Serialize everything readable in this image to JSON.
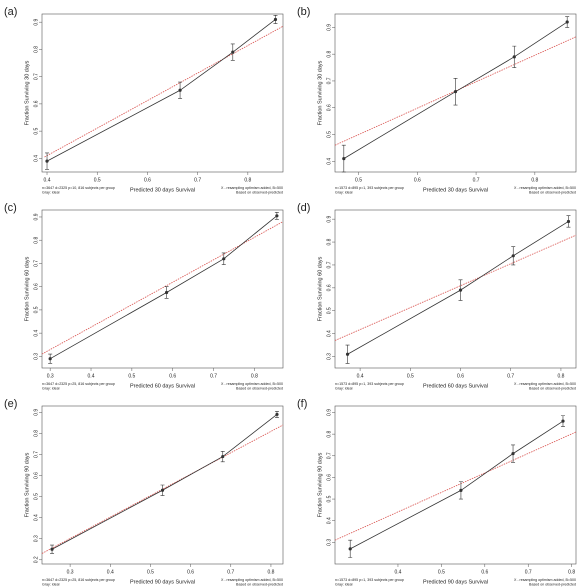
{
  "chart_data": [
    {
      "type": "line",
      "label": "(a)",
      "xlabel": "Predicted  30 days Survival",
      "ylabel": "Fraction Surviving 30 days",
      "note_left": [
        "n=3647 d=2325 p=10, 816 subjects per group",
        "Gray: ideal"
      ],
      "note_right": [
        "X - resampling optimism added, B=500",
        "Based on observed-predicted"
      ],
      "x": [
        0.4,
        0.665,
        0.77,
        0.855
      ],
      "values": [
        0.39,
        0.65,
        0.79,
        0.91
      ],
      "errors": [
        0.03,
        0.03,
        0.03,
        0.015
      ],
      "color": "#333333",
      "fit_x": [
        0.395,
        0.87
      ],
      "fit_values": [
        0.405,
        0.885
      ],
      "fit_color": "#d9534f",
      "xlim": [
        0.39,
        0.87
      ],
      "xticks": [
        0.4,
        0.5,
        0.6,
        0.7,
        0.8
      ],
      "ylim": [
        0.35,
        0.93
      ],
      "yticks": [
        0.4,
        0.5,
        0.6,
        0.7,
        0.8,
        0.9
      ]
    },
    {
      "type": "line",
      "label": "(b)",
      "xlabel": "Predicted  30 days Survival",
      "ylabel": "Fraction Surviving 30 days",
      "note_left": [
        "n=1573 d=895 p=1, 393 subjects per group",
        "Gray: ideal"
      ],
      "note_right": [
        "X - resampling optimism added, B=500",
        "Based on observed-predicted"
      ],
      "x": [
        0.475,
        0.665,
        0.765,
        0.855
      ],
      "values": [
        0.41,
        0.66,
        0.79,
        0.92
      ],
      "errors": [
        0.05,
        0.05,
        0.04,
        0.02
      ],
      "color": "#333333",
      "fit_x": [
        0.46,
        0.87
      ],
      "fit_values": [
        0.46,
        0.865
      ],
      "fit_color": "#d9534f",
      "xlim": [
        0.46,
        0.87
      ],
      "xticks": [
        0.5,
        0.6,
        0.7,
        0.8
      ],
      "ylim": [
        0.36,
        0.95
      ],
      "yticks": [
        0.4,
        0.5,
        0.6,
        0.7,
        0.8,
        0.9
      ]
    },
    {
      "type": "line",
      "label": "(c)",
      "xlabel": "Predicted  60 days Survival",
      "ylabel": "Fraction Surviving 60 days",
      "note_left": [
        "n=3647 d=2325 p=25, 816 subjects per group",
        "Gray: ideal"
      ],
      "note_right": [
        "X - resampling optimism added, B=500",
        "Based on observed-predicted"
      ],
      "x": [
        0.3,
        0.585,
        0.725,
        0.855
      ],
      "values": [
        0.29,
        0.575,
        0.72,
        0.905
      ],
      "errors": [
        0.02,
        0.025,
        0.025,
        0.015
      ],
      "color": "#333333",
      "fit_x": [
        0.28,
        0.87
      ],
      "fit_values": [
        0.31,
        0.88
      ],
      "fit_color": "#d9534f",
      "xlim": [
        0.28,
        0.87
      ],
      "xticks": [
        0.3,
        0.4,
        0.5,
        0.6,
        0.7,
        0.8
      ],
      "ylim": [
        0.25,
        0.93
      ],
      "yticks": [
        0.3,
        0.4,
        0.5,
        0.6,
        0.7,
        0.8,
        0.9
      ]
    },
    {
      "type": "line",
      "label": "(d)",
      "xlabel": "Predicted  60 days Survival",
      "ylabel": "Fraction Surviving 60 days",
      "note_left": [
        "n=1573 d=895 p=1, 393 subjects per group",
        "Gray: ideal"
      ],
      "note_right": [
        "X - resampling optimism added, B=500",
        "Based on observed-predicted"
      ],
      "x": [
        0.375,
        0.6,
        0.705,
        0.815
      ],
      "values": [
        0.31,
        0.59,
        0.74,
        0.89
      ],
      "errors": [
        0.04,
        0.045,
        0.04,
        0.025
      ],
      "color": "#333333",
      "fit_x": [
        0.35,
        0.83
      ],
      "fit_values": [
        0.37,
        0.83
      ],
      "fit_color": "#d9534f",
      "xlim": [
        0.35,
        0.83
      ],
      "xticks": [
        0.4,
        0.5,
        0.6,
        0.7,
        0.8
      ],
      "ylim": [
        0.25,
        0.94
      ],
      "yticks": [
        0.3,
        0.4,
        0.5,
        0.6,
        0.7,
        0.8,
        0.9
      ]
    },
    {
      "type": "line",
      "label": "(e)",
      "xlabel": "Predicted  90 days Survival",
      "ylabel": "Fraction Surviving 90 days",
      "note_left": [
        "n=3647 d=2325 p=25, 816 subjects per group",
        "Gray: ideal"
      ],
      "note_right": [
        "X - resampling optimism added, B=500",
        "Based on observed-predicted"
      ],
      "x": [
        0.255,
        0.53,
        0.68,
        0.815
      ],
      "values": [
        0.25,
        0.53,
        0.69,
        0.89
      ],
      "errors": [
        0.02,
        0.025,
        0.025,
        0.015
      ],
      "color": "#333333",
      "fit_x": [
        0.23,
        0.83
      ],
      "fit_values": [
        0.23,
        0.84
      ],
      "fit_color": "#d9534f",
      "xlim": [
        0.23,
        0.83
      ],
      "xticks": [
        0.3,
        0.4,
        0.5,
        0.6,
        0.7,
        0.8
      ],
      "ylim": [
        0.18,
        0.93
      ],
      "yticks": [
        0.2,
        0.3,
        0.4,
        0.5,
        0.6,
        0.7,
        0.8,
        0.9
      ]
    },
    {
      "type": "line",
      "label": "(f)",
      "xlabel": "Predicted  90 days Survival",
      "ylabel": "Fraction Surviving 90 days",
      "note_left": [
        "n=1573 d=895 p=1, 393 subjects per group",
        "Gray: ideal"
      ],
      "note_right": [
        "X - resampling optimism added, B=500",
        "Based on observed-predicted"
      ],
      "x": [
        0.29,
        0.545,
        0.665,
        0.78
      ],
      "values": [
        0.27,
        0.54,
        0.71,
        0.86
      ],
      "errors": [
        0.04,
        0.04,
        0.04,
        0.025
      ],
      "color": "#333333",
      "fit_x": [
        0.255,
        0.81
      ],
      "fit_values": [
        0.31,
        0.81
      ],
      "fit_color": "#d9534f",
      "xlim": [
        0.255,
        0.81
      ],
      "xticks": [
        0.4,
        0.5,
        0.6,
        0.7,
        0.8
      ],
      "ylim": [
        0.2,
        0.93
      ],
      "yticks": [
        0.3,
        0.4,
        0.5,
        0.6,
        0.7,
        0.8,
        0.9
      ]
    }
  ]
}
